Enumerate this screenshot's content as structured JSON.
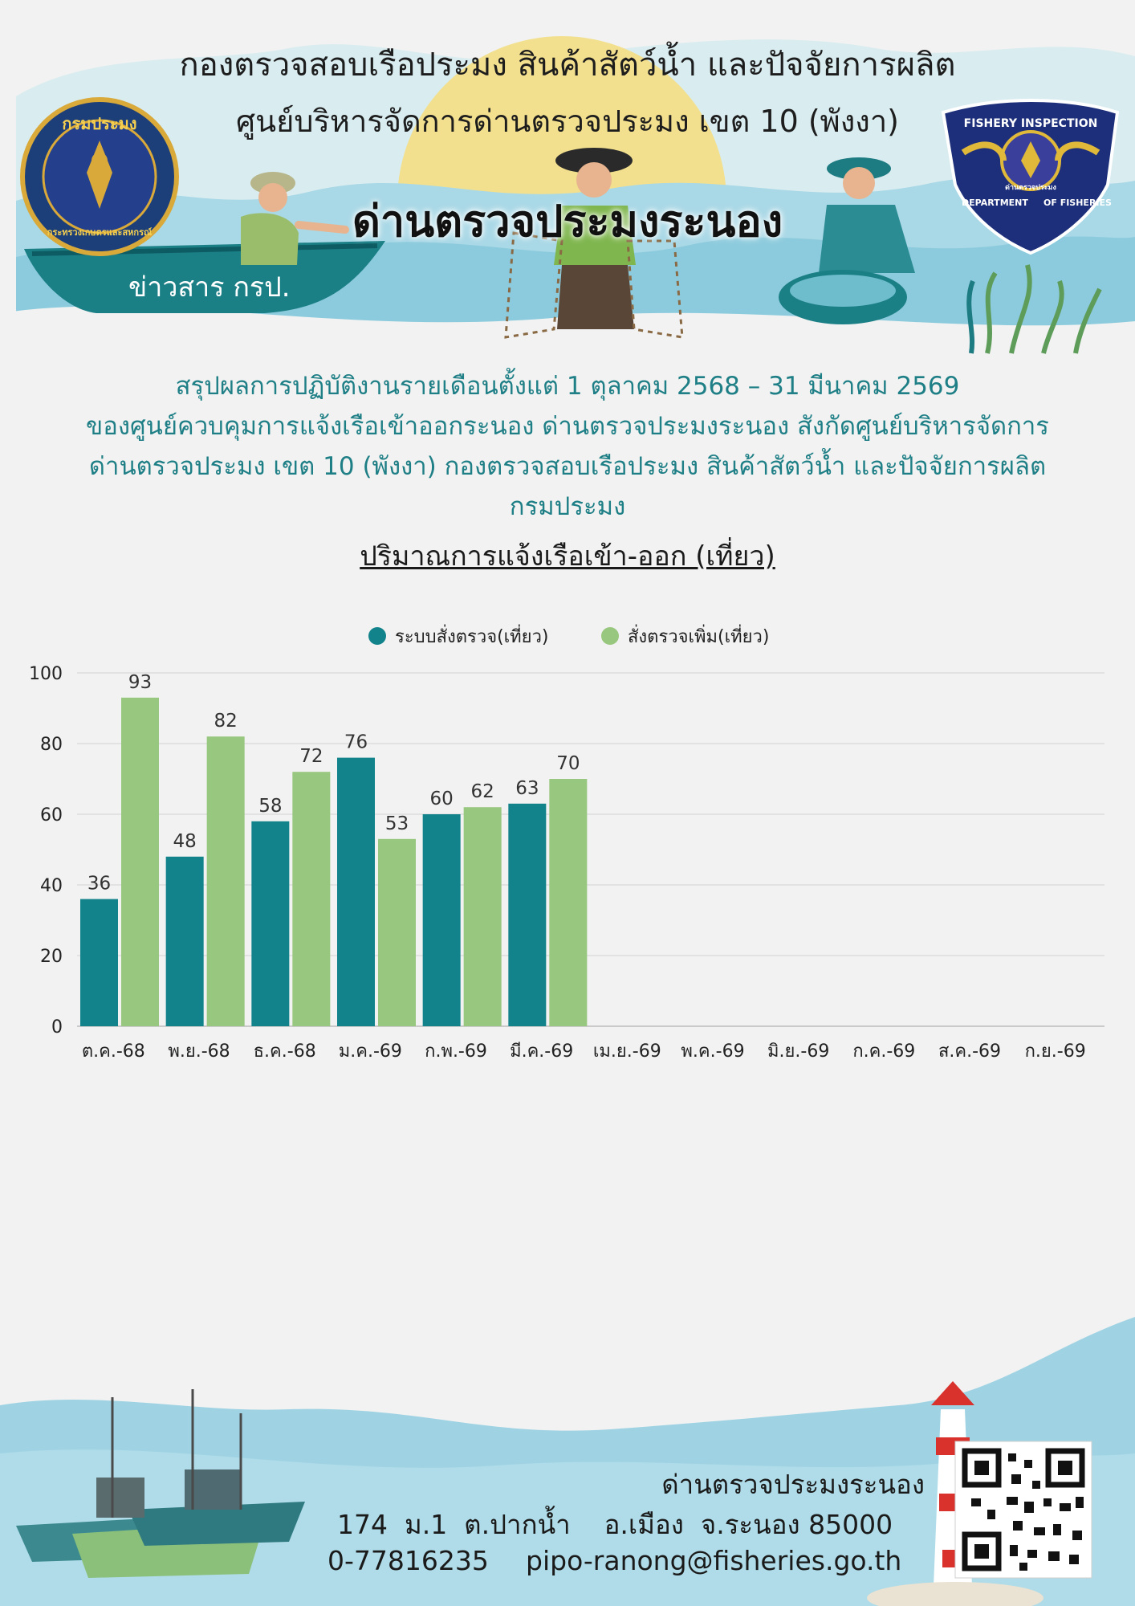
{
  "header": {
    "line1": "กองตรวจสอบเรือประมง สินค้าสัตว์น้ำ และปัจจัยการผลิต",
    "line2": "ศูนย์บริหารจัดการด่านตรวจประมง เขต 10 (พังงา)",
    "line3": "ด่านตรวจประมงระนอง",
    "news_label": "ข่าวสาร กรป.",
    "left_logo_top": "กรมประมง",
    "left_logo_bottom": "กระทรวงเกษตรและสหกรณ์",
    "right_logo_top": "FISHERY INSPECTION",
    "right_logo_left": "DEPARTMENT",
    "right_logo_right": "OF FISHERIES",
    "right_logo_center": "ด่านตรวจประมง"
  },
  "summary": {
    "line1": "สรุปผลการปฏิบัติงานรายเดือนตั้งแต่ 1 ตุลาคม 2568 – 31 มีนาคม  2569",
    "line2": "ของศูนย์ควบคุมการแจ้งเรือเข้าออกระนอง ด่านตรวจประมงระนอง สังกัดศูนย์บริหารจัดการ",
    "line3": "ด่านตรวจประมง เขต 10 (พังงา) กองตรวจสอบเรือประมง สินค้าสัตว์น้ำ และปัจจัยการผลิต",
    "line4": "กรมประมง"
  },
  "chart_data": {
    "type": "bar",
    "title": "ปริมาณการแจ้งเรือเข้า-ออก (เที่ยว)",
    "categories": [
      "ต.ค.-68",
      "พ.ย.-68",
      "ธ.ค.-68",
      "ม.ค.-69",
      "ก.พ.-69",
      "มี.ค.-69",
      "เม.ย.-69",
      "พ.ค.-69",
      "มิ.ย.-69",
      "ก.ค.-69",
      "ส.ค.-69",
      "ก.ย.-69"
    ],
    "series": [
      {
        "name": "ระบบสั่งตรวจ(เที่ยว)",
        "color": "#13838b",
        "values": [
          36,
          48,
          58,
          76,
          60,
          63,
          null,
          null,
          null,
          null,
          null,
          null
        ]
      },
      {
        "name": "สั่งตรวจเพิ่ม(เที่ยว)",
        "color": "#98c77f",
        "values": [
          93,
          82,
          72,
          53,
          62,
          70,
          null,
          null,
          null,
          null,
          null,
          null
        ]
      }
    ],
    "ylim": [
      0,
      100
    ],
    "yticks": [
      0,
      20,
      40,
      60,
      80,
      100
    ],
    "grid": true,
    "legend": "top-center",
    "data_labels": true
  },
  "footer": {
    "name": "ด่านตรวจประมงระนอง",
    "address": "174  ม.1  ต.ปากน้ำ    อ.เมือง  จ.ระนอง 85000",
    "phone": "0-77816235",
    "email": "pipo-ranong@fisheries.go.th"
  },
  "colors": {
    "teal": "#13838b",
    "green": "#98c77f",
    "summary_text": "#1f7f86",
    "sea": "#9fd3e4"
  }
}
